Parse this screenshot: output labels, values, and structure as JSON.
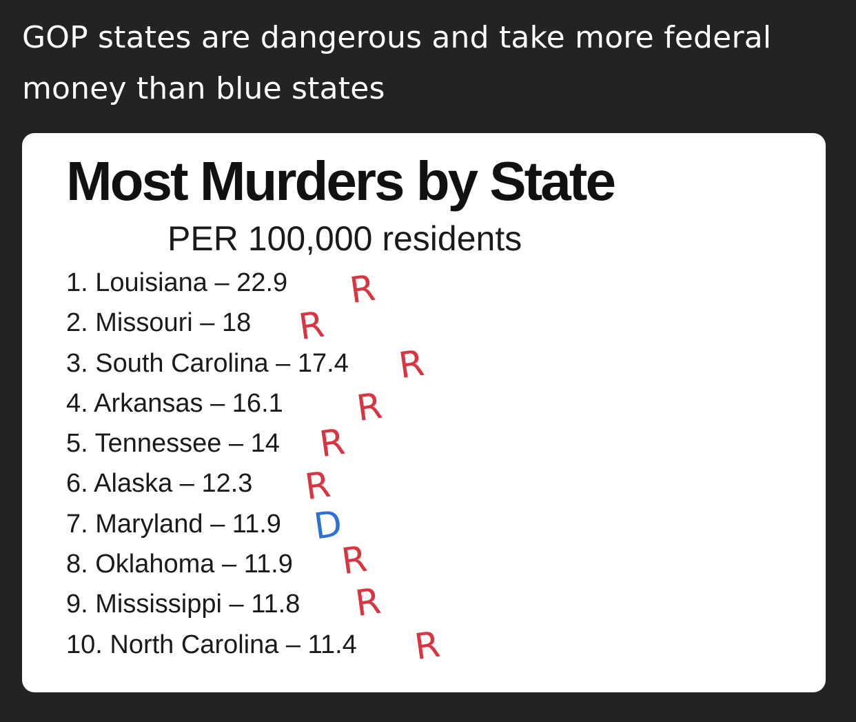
{
  "post": {
    "caption": "GOP states are dangerous and take more federal money than blue states"
  },
  "infographic": {
    "title": "Most Murders by State",
    "subtitle": "PER 100,000 residents",
    "rankings": [
      {
        "text": "1. Louisiana – 22.9",
        "mark": "R"
      },
      {
        "text": "2. Missouri – 18",
        "mark": "R"
      },
      {
        "text": "3. South Carolina – 17.4",
        "mark": "R"
      },
      {
        "text": "4. Arkansas – 16.1",
        "mark": "R"
      },
      {
        "text": "5. Tennessee – 14",
        "mark": "R"
      },
      {
        "text": "6. Alaska – 12.3",
        "mark": "R"
      },
      {
        "text": "7. Maryland – 11.9",
        "mark": "D"
      },
      {
        "text": "8. Oklahoma – 11.9",
        "mark": "R"
      },
      {
        "text": "9. Mississippi – 11.8",
        "mark": "R"
      },
      {
        "text": "10. North Carolina – 11.4",
        "mark": "R"
      }
    ]
  },
  "colors": {
    "background": "#232323",
    "card": "#ffffff",
    "republican_mark": "#d9343f",
    "democrat_mark": "#2e6fd8"
  }
}
